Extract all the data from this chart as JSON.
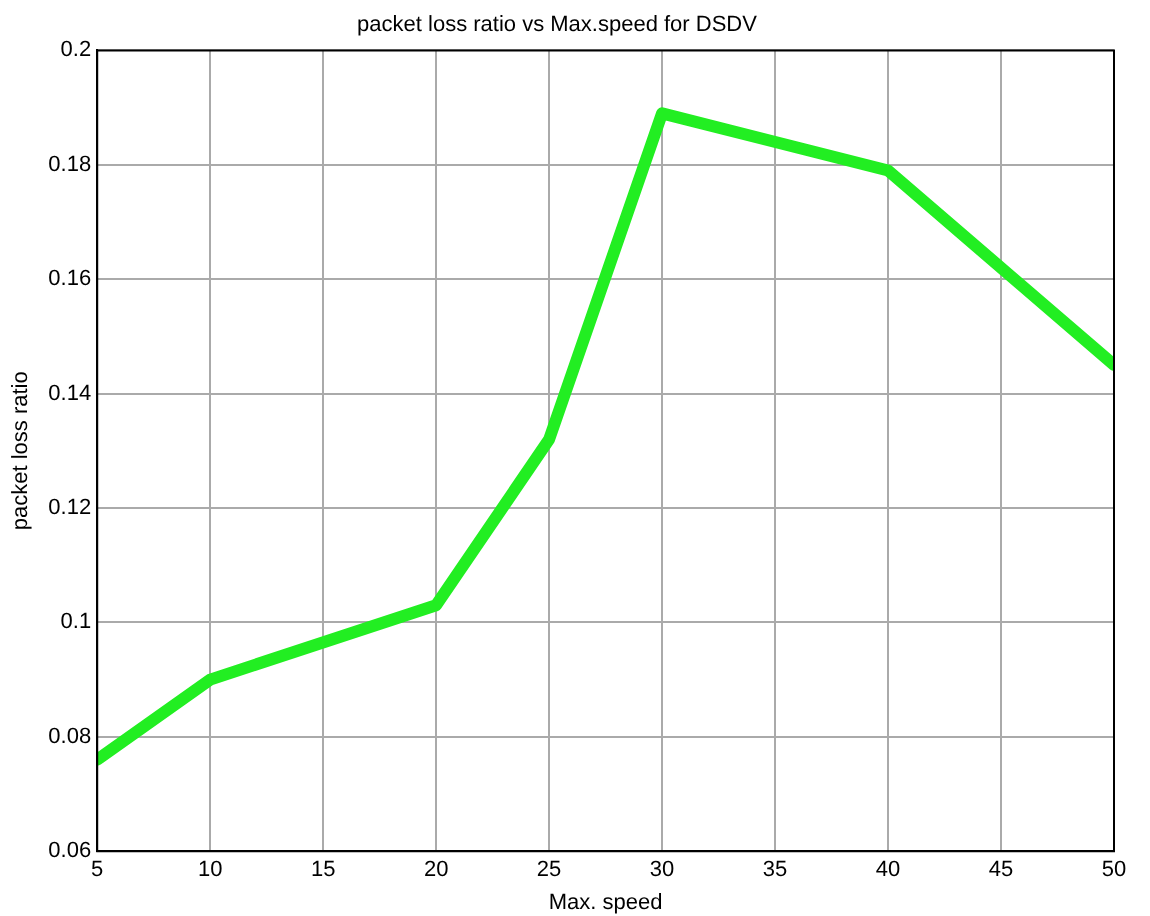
{
  "chart_data": {
    "type": "line",
    "title": "packet loss ratio vs Max.speed for DSDV",
    "xlabel": "Max. speed",
    "ylabel": "packet loss ratio",
    "x": [
      5,
      10,
      20,
      25,
      30,
      40,
      50
    ],
    "series": [
      {
        "color": "#22ee22",
        "values": [
          0.076,
          0.09,
          0.103,
          0.132,
          0.189,
          0.179,
          0.145
        ]
      }
    ],
    "xlim": [
      5,
      50
    ],
    "xticks": [
      5,
      10,
      15,
      20,
      25,
      30,
      35,
      40,
      45,
      50
    ],
    "ylim": [
      0.06,
      0.2
    ],
    "yticks": [
      0.06,
      0.08,
      0.1,
      0.12,
      0.14,
      0.16,
      0.18,
      0.2
    ],
    "grid": true,
    "legend": false,
    "marker": "none",
    "line_style": "solid"
  }
}
